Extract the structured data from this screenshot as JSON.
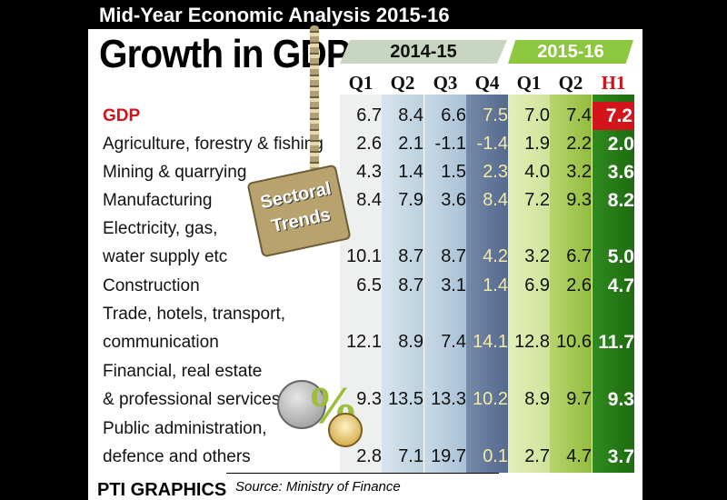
{
  "header": {
    "top_title": "Mid-Year Economic Analysis 2015-16",
    "main_title": "Growth in GDP"
  },
  "badge": {
    "line1": "Sectoral",
    "line2": "Trends"
  },
  "footer": {
    "logo": "PTI GRAPHICS",
    "source": "Source: Ministry of Finance"
  },
  "colors": {
    "gdp_label": "#d3141a",
    "h1_header": "#d3141a",
    "h1_column": "#2f8a1e",
    "fy1516_band": "#8dc63f",
    "fy1415_band": "#c8d6c1",
    "q4_column": "#5f7597"
  },
  "chart_data": {
    "type": "table",
    "year_groups": [
      {
        "label": "2014-15",
        "columns": [
          "Q1",
          "Q2",
          "Q3",
          "Q4"
        ]
      },
      {
        "label": "2015-16",
        "columns": [
          "Q1",
          "Q2",
          "H1"
        ]
      }
    ],
    "columns": [
      "Q1",
      "Q2",
      "Q3",
      "Q4",
      "Q1",
      "Q2",
      "H1"
    ],
    "rows": [
      {
        "label": [
          "GDP"
        ],
        "values": [
          "6.7",
          "8.4",
          "6.6",
          "7.5",
          "7.0",
          "7.4",
          "7.2"
        ]
      },
      {
        "label": [
          "Agriculture, forestry & fishing"
        ],
        "values": [
          "2.6",
          "2.1",
          "-1.1",
          "-1.4",
          "1.9",
          "2.2",
          "2.0"
        ]
      },
      {
        "label": [
          "Mining & quarrying"
        ],
        "values": [
          "4.3",
          "1.4",
          "1.5",
          "2.3",
          "4.0",
          "3.2",
          "3.6"
        ]
      },
      {
        "label": [
          "Manufacturing"
        ],
        "values": [
          "8.4",
          "7.9",
          "3.6",
          "8.4",
          "7.2",
          "9.3",
          "8.2"
        ]
      },
      {
        "label": [
          "Electricity, gas,",
          "water supply etc"
        ],
        "values": [
          "10.1",
          "8.7",
          "8.7",
          "4.2",
          "3.2",
          "6.7",
          "5.0"
        ]
      },
      {
        "label": [
          "Construction"
        ],
        "values": [
          "6.5",
          "8.7",
          "3.1",
          "1.4",
          "6.9",
          "2.6",
          "4.7"
        ]
      },
      {
        "label": [
          "Trade, hotels, transport,",
          "communication"
        ],
        "values": [
          "12.1",
          "8.9",
          "7.4",
          "14.1",
          "12.8",
          "10.6",
          "11.7"
        ]
      },
      {
        "label": [
          "Financial, real estate",
          "& professional services"
        ],
        "values": [
          "9.3",
          "13.5",
          "13.3",
          "10.2",
          "8.9",
          "9.7",
          "9.3"
        ]
      },
      {
        "label": [
          "Public administration,",
          "defence and others"
        ],
        "values": [
          "2.8",
          "7.1",
          "19.7",
          "0.1",
          "2.7",
          "4.7",
          "3.7"
        ]
      }
    ]
  }
}
